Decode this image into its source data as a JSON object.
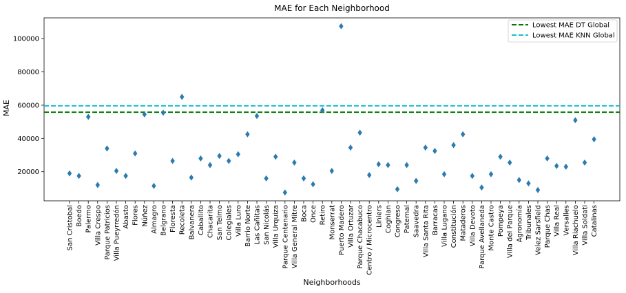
{
  "chart_data": {
    "type": "scatter",
    "title": "MAE for Each Neighborhood",
    "xlabel": "Neighborhoods",
    "ylabel": "MAE",
    "ylim": [
      2500,
      112500
    ],
    "yticks": [
      20000,
      40000,
      60000,
      80000,
      100000
    ],
    "marker": "diamond",
    "marker_color": "#2b7bb0",
    "grid": false,
    "legend_position": "top-right",
    "categories": [
      "San Cristobal",
      "Boedo",
      "Palermo",
      "Villa Crespo",
      "Parque Patricios",
      "Villa Pueyrredón",
      "Abasto",
      "Flores",
      "Núñez",
      "Almagro",
      "Belgrano",
      "Floresta",
      "Recoleta",
      "Balvanera",
      "Caballito",
      "Chacarita",
      "San Telmo",
      "Colegiales",
      "Villa Luro",
      "Barrio Norte",
      "Las Cañitas",
      "San Nicolás",
      "Villa Urquiza",
      "Parque Centenario",
      "Villa General Mitre",
      "Boca",
      "Once",
      "Retiro",
      "Monserrat",
      "Puerto Madero",
      "Villa Ortuzar",
      "Parque Chacabuco",
      "Centro / Microcentro",
      "Liniers",
      "Coghlan",
      "Congreso",
      "Paternal",
      "Saavedra",
      "Villa Santa Rita",
      "Barracas",
      "Villa Lugano",
      "Constitución",
      "Mataderos",
      "Villa Devoto",
      "Parque Avellaneda",
      "Monte Castro",
      "Pompeya",
      "Villa del Parque",
      "Agronomía",
      "Tribunales",
      "Velez Sarsfield",
      "Parque Chas",
      "Villa Real",
      "Versalles",
      "Villa Riachuelo",
      "Villa Soldati",
      "Catalinas"
    ],
    "values": [
      19000,
      17500,
      53000,
      12000,
      34000,
      20500,
      17500,
      31000,
      54500,
      11500,
      55500,
      26500,
      65000,
      16500,
      28000,
      24000,
      29500,
      26500,
      30500,
      42500,
      53500,
      16000,
      29000,
      7500,
      25500,
      16000,
      12500,
      57000,
      20500,
      107500,
      34500,
      43500,
      18000,
      24500,
      24000,
      9500,
      24000,
      14500,
      34500,
      32500,
      18500,
      36000,
      42500,
      17500,
      10500,
      18500,
      29000,
      25500,
      15000,
      13000,
      9000,
      28000,
      23500,
      23000,
      51000,
      25500,
      39500
    ],
    "hlines": [
      {
        "name": "Lowest MAE DT Global",
        "value": 55800,
        "color": "#007a00"
      },
      {
        "name": "Lowest MAE KNN Global",
        "value": 59600,
        "color": "#17becf"
      }
    ]
  }
}
